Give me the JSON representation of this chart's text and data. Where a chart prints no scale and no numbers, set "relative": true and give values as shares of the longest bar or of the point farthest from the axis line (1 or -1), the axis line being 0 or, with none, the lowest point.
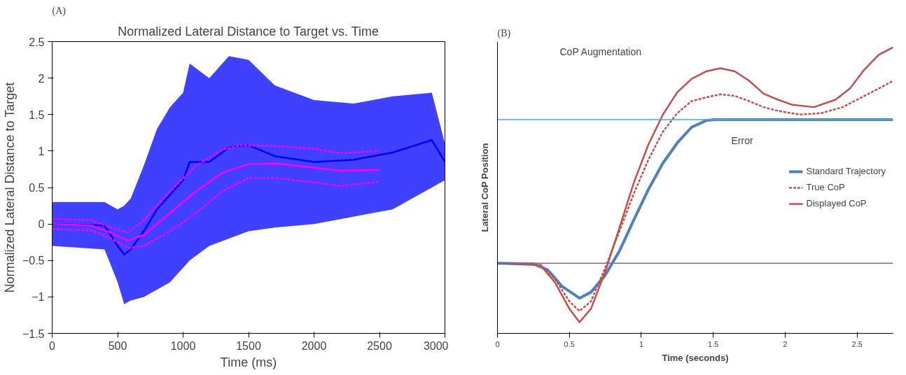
{
  "chart_data": [
    {
      "type": "line",
      "title": "Normalized Lateral Distance to Target vs. Time",
      "xlabel": "Time (ms)",
      "ylabel": "Normalized Lateral Distance to Target",
      "annotations": [
        "(A)"
      ],
      "xlim": [
        0,
        3000
      ],
      "ylim": [
        -1.5,
        2.5
      ],
      "xticks": [
        0,
        500,
        1000,
        1500,
        2000,
        2500,
        3000
      ],
      "yticks": [
        -1.5,
        -1,
        -0.5,
        0,
        0.5,
        1,
        1.5,
        2,
        2.5
      ],
      "grid": false,
      "legend": false,
      "series": [
        {
          "type": "line",
          "color": "#0000ff",
          "x": [
            0,
            400,
            500,
            550,
            600,
            700,
            800,
            900,
            1000,
            1050,
            1200,
            1350,
            1500,
            1700,
            2000,
            2300,
            2600,
            2900,
            3000
          ],
          "values": [
            0.0,
            -0.02,
            -0.3,
            -0.42,
            -0.35,
            -0.1,
            0.2,
            0.4,
            0.6,
            0.85,
            0.85,
            1.05,
            1.08,
            0.93,
            0.85,
            0.88,
            0.98,
            1.15,
            0.85
          ],
          "upper": [
            0.3,
            0.3,
            0.2,
            0.25,
            0.35,
            0.8,
            1.3,
            1.6,
            1.8,
            2.2,
            2.0,
            2.3,
            2.25,
            1.9,
            1.7,
            1.65,
            1.75,
            1.8,
            1.1
          ],
          "lower": [
            -0.3,
            -0.35,
            -0.8,
            -1.1,
            -1.05,
            -1.0,
            -0.9,
            -0.8,
            -0.6,
            -0.5,
            -0.3,
            -0.2,
            -0.1,
            -0.05,
            0.0,
            0.1,
            0.2,
            0.5,
            0.6
          ]
        },
        {
          "type": "line",
          "color": "#ff00ff",
          "line_style": "solid",
          "x": [
            0,
            300,
            450,
            580,
            700,
            900,
            1100,
            1300,
            1500,
            1700,
            2000,
            2200,
            2500
          ],
          "values": [
            0.0,
            -0.02,
            -0.12,
            -0.23,
            -0.15,
            0.15,
            0.45,
            0.7,
            0.82,
            0.83,
            0.77,
            0.73,
            0.74
          ]
        },
        {
          "type": "line",
          "color": "#ff00ff",
          "line_style": "dashed",
          "x": [
            0,
            300,
            450,
            580,
            700,
            900,
            1100,
            1300,
            1450,
            1700,
            2000,
            2200,
            2500
          ],
          "values": [
            0.07,
            0.05,
            -0.05,
            -0.12,
            0.05,
            0.45,
            0.8,
            1.02,
            1.08,
            1.07,
            1.03,
            0.97,
            1.0
          ]
        },
        {
          "type": "line",
          "color": "#ff00ff",
          "line_style": "dashed",
          "x": [
            0,
            300,
            450,
            580,
            700,
            900,
            1100,
            1300,
            1500,
            1700,
            2000,
            2200,
            2500
          ],
          "values": [
            -0.07,
            -0.09,
            -0.2,
            -0.33,
            -0.3,
            -0.1,
            0.15,
            0.45,
            0.63,
            0.63,
            0.57,
            0.52,
            0.58
          ]
        }
      ]
    },
    {
      "type": "line",
      "relative": true,
      "xlabel": "Time (seconds)",
      "ylabel": "Lateral CoP Position",
      "annotations": [
        "(B)",
        "CoP Augmentation",
        "Error"
      ],
      "xlim": [
        0,
        2.75
      ],
      "xticks": [
        0,
        0.5,
        1,
        1.5,
        2,
        2.5
      ],
      "tick_labels": "x",
      "grid": false,
      "legend": "right",
      "ref_lines": [
        {
          "axis": "y",
          "value": 0.747,
          "color": "#4bacc6"
        },
        {
          "axis": "y",
          "value": 0.245,
          "color": "#8064a2"
        }
      ],
      "series": [
        {
          "name": "Standard Trajectory",
          "color": "#4f81bd",
          "line_style": "solid",
          "x": [
            0,
            0.25,
            0.35,
            0.45,
            0.57,
            0.65,
            0.75,
            0.85,
            0.95,
            1.05,
            1.15,
            1.25,
            1.35,
            1.45,
            1.5,
            2.75
          ],
          "values": [
            0.245,
            0.243,
            0.222,
            0.164,
            0.123,
            0.144,
            0.204,
            0.29,
            0.399,
            0.504,
            0.595,
            0.666,
            0.721,
            0.744,
            0.747,
            0.747
          ]
        },
        {
          "name": "True CoP",
          "color": "#c0504d",
          "line_style": "dashed",
          "x": [
            0,
            0.3,
            0.4,
            0.5,
            0.57,
            0.65,
            0.75,
            0.85,
            0.95,
            1.05,
            1.15,
            1.25,
            1.35,
            1.45,
            1.55,
            1.65,
            1.75,
            1.85,
            1.95,
            2.1,
            2.25,
            2.4,
            2.55,
            2.65,
            2.75
          ],
          "values": [
            0.245,
            0.24,
            0.19,
            0.112,
            0.078,
            0.112,
            0.23,
            0.36,
            0.491,
            0.608,
            0.705,
            0.77,
            0.812,
            0.825,
            0.836,
            0.83,
            0.812,
            0.791,
            0.778,
            0.765,
            0.77,
            0.791,
            0.83,
            0.856,
            0.883
          ]
        },
        {
          "name": "Displayed CoP",
          "color": "#c0504d",
          "line_style": "solid",
          "x": [
            0,
            0.3,
            0.4,
            0.5,
            0.57,
            0.65,
            0.75,
            0.85,
            0.95,
            1.05,
            1.15,
            1.25,
            1.35,
            1.45,
            1.55,
            1.65,
            1.75,
            1.85,
            1.95,
            2.05,
            2.2,
            2.35,
            2.45,
            2.55,
            2.65,
            2.75
          ],
          "values": [
            0.245,
            0.238,
            0.178,
            0.086,
            0.039,
            0.086,
            0.217,
            0.373,
            0.53,
            0.661,
            0.765,
            0.843,
            0.89,
            0.916,
            0.927,
            0.916,
            0.883,
            0.838,
            0.817,
            0.799,
            0.791,
            0.817,
            0.856,
            0.922,
            0.974,
            1.0
          ]
        }
      ]
    }
  ]
}
